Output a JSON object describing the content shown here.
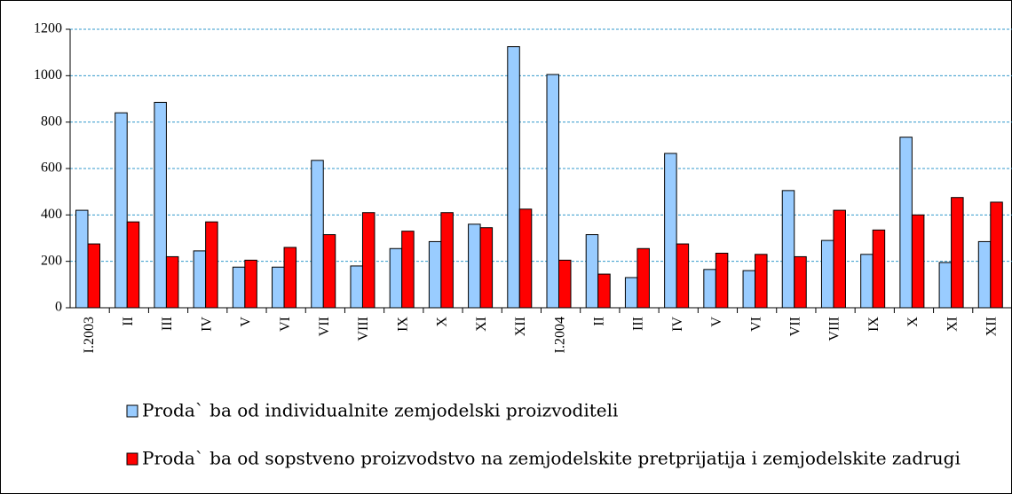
{
  "chart_data": {
    "type": "bar",
    "categories": [
      "I.2003",
      "II",
      "III",
      "IV",
      "V",
      "VI",
      "VII",
      "VIII",
      "IX",
      "X",
      "XI",
      "XII",
      "I.2004",
      "II",
      "III",
      "IV",
      "V",
      "VI",
      "VII",
      "VIII",
      "IX",
      "X",
      "XI",
      "XII"
    ],
    "series": [
      {
        "name": "Proda` ba od individualnite zemjodelski proizvoditeli",
        "color": "#99ccff",
        "values": [
          420,
          840,
          885,
          245,
          175,
          175,
          635,
          180,
          255,
          285,
          360,
          1125,
          1005,
          315,
          130,
          665,
          165,
          160,
          505,
          290,
          230,
          735,
          195,
          285
        ]
      },
      {
        "name": "Proda` ba od sopstveno proizvodstvo na zemjodelskite pretprijatija i zemjodelskite zadrugi",
        "color": "#ff0000",
        "values": [
          275,
          370,
          220,
          370,
          205,
          260,
          315,
          410,
          330,
          410,
          345,
          425,
          205,
          145,
          255,
          275,
          235,
          230,
          220,
          420,
          335,
          400,
          475,
          455
        ]
      }
    ],
    "ylim": [
      0,
      1200
    ],
    "yticks": [
      0,
      200,
      400,
      600,
      800,
      1000,
      1200
    ],
    "grid": true
  }
}
